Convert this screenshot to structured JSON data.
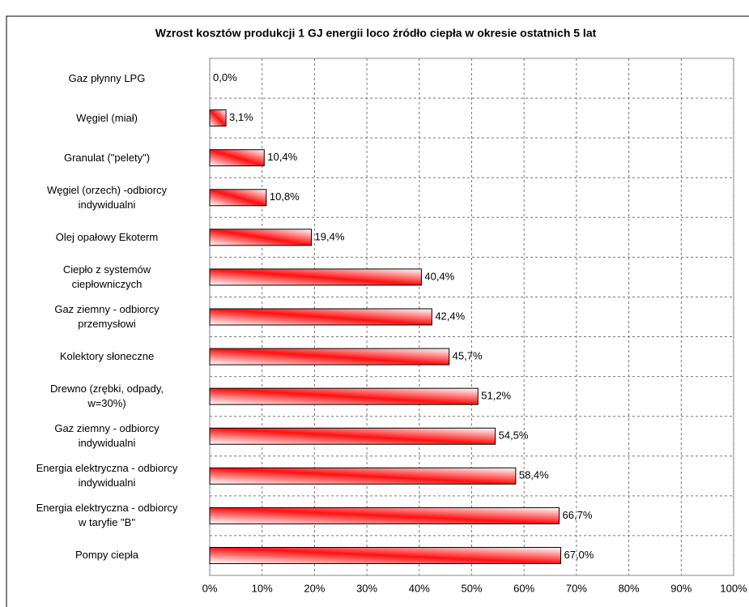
{
  "chart_data": {
    "type": "hbar",
    "title": "Wzrost kosztów produkcji 1 GJ energii loco źródło ciepła w okresie ostatnich 5 lat",
    "categories": [
      "Gaz płynny LPG",
      "Węgiel (miał)",
      "Granulat (\"pelety\")",
      "Węgiel (orzech) -odbiorcy\nindywidualni",
      "Olej opałowy Ekoterm",
      "Ciepło z systemów\nciepłowniczych",
      "Gaz ziemny - odbiorcy\nprzemysłowi",
      "Kolektory słoneczne",
      "Drewno (zrębki, odpady,\nw=30%)",
      "Gaz ziemny - odbiorcy\nindywidualni",
      "Energia elektryczna - odbiorcy\nindywidualni",
      "Energia elektryczna - odbiorcy\nw taryfie \"B\"",
      "Pompy ciepła"
    ],
    "values": [
      0.0,
      3.1,
      10.4,
      10.8,
      19.4,
      40.4,
      42.4,
      45.7,
      51.2,
      54.5,
      58.4,
      66.7,
      67.0
    ],
    "value_labels": [
      "0,0%",
      "3,1%",
      "10,4%",
      "10,8%",
      "19,4%",
      "40,4%",
      "42,4%",
      "45,7%",
      "51,2%",
      "54,5%",
      "58,4%",
      "66,7%",
      "67,0%"
    ],
    "color": "#ff0000",
    "xlim": [
      0,
      100
    ],
    "xticks": [
      {
        "value": 0,
        "label": "0%"
      },
      {
        "value": 10,
        "label": "10%"
      },
      {
        "value": 20,
        "label": "20%"
      },
      {
        "value": 30,
        "label": "30%"
      },
      {
        "value": 40,
        "label": "40%"
      },
      {
        "value": 50,
        "label": "50%"
      },
      {
        "value": 60,
        "label": "60%"
      },
      {
        "value": 70,
        "label": "70%"
      },
      {
        "value": 80,
        "label": "80%"
      },
      {
        "value": 90,
        "label": "90%"
      },
      {
        "value": 100,
        "label": "100%"
      }
    ],
    "grid": true
  }
}
